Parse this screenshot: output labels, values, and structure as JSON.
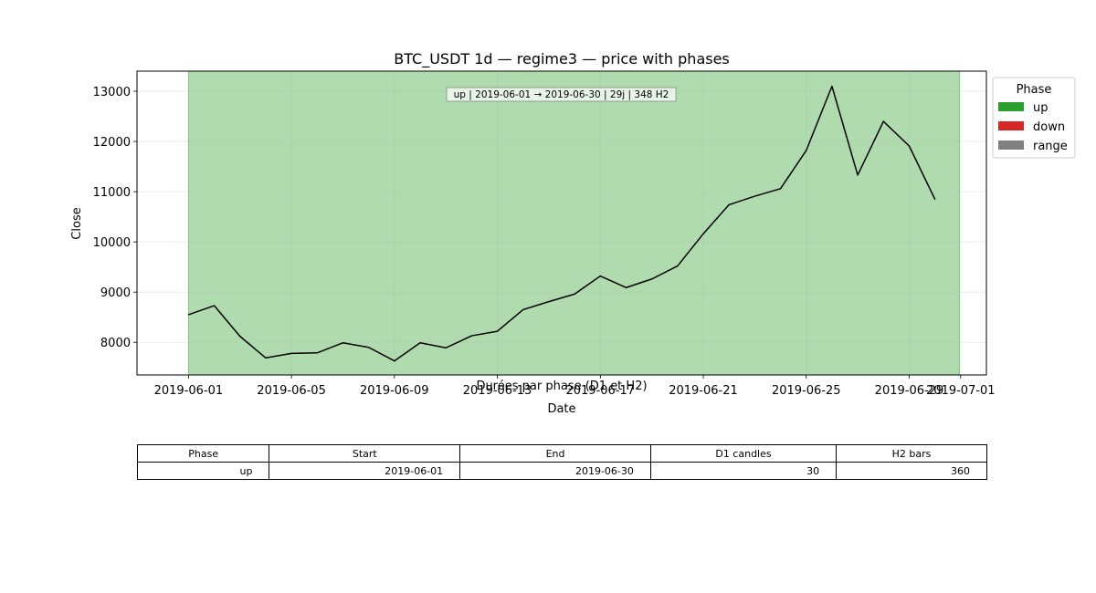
{
  "chart_data": {
    "type": "line",
    "title": "BTC_USDT 1d — regime3 — price with phases",
    "xlabel": "Date",
    "ylabel": "Close",
    "x": [
      "2019-06-01",
      "2019-06-02",
      "2019-06-03",
      "2019-06-04",
      "2019-06-05",
      "2019-06-06",
      "2019-06-07",
      "2019-06-08",
      "2019-06-09",
      "2019-06-10",
      "2019-06-11",
      "2019-06-12",
      "2019-06-13",
      "2019-06-14",
      "2019-06-15",
      "2019-06-16",
      "2019-06-17",
      "2019-06-18",
      "2019-06-19",
      "2019-06-20",
      "2019-06-21",
      "2019-06-22",
      "2019-06-23",
      "2019-06-24",
      "2019-06-25",
      "2019-06-26",
      "2019-06-27",
      "2019-06-28",
      "2019-06-29",
      "2019-06-30"
    ],
    "series": [
      {
        "values": [
          8550,
          8730,
          8120,
          7690,
          7780,
          7790,
          7990,
          7900,
          7630,
          7990,
          7890,
          8130,
          8220,
          8650,
          8810,
          8960,
          9320,
          9090,
          9260,
          9520,
          10160,
          10740,
          10910,
          11060,
          11820,
          13100,
          11330,
          12400,
          11910,
          10850
        ],
        "color": "#000000"
      }
    ],
    "xlim": [
      "2019-05-30",
      "2019-07-02"
    ],
    "ylim": [
      7350,
      13400
    ],
    "x_ticks": [
      "2019-06-01",
      "2019-06-05",
      "2019-06-09",
      "2019-06-13",
      "2019-06-17",
      "2019-06-21",
      "2019-06-25",
      "2019-06-29",
      "2019-07-01"
    ],
    "y_ticks": [
      8000,
      9000,
      10000,
      11000,
      12000,
      13000
    ],
    "grid": true,
    "phases": [
      {
        "phase": "up",
        "start": "2019-06-01",
        "end": "2019-06-30",
        "color": "#2ca02c",
        "alpha": 0.38
      }
    ],
    "annotation": "up | 2019-06-01 → 2019-06-30 | 29j | 348 H2",
    "legend": {
      "title": "Phase",
      "position": "outside-right",
      "items": [
        {
          "label": "up",
          "color": "#2ca02c"
        },
        {
          "label": "down",
          "color": "#d62728"
        },
        {
          "label": "range",
          "color": "#7f7f7f"
        }
      ]
    }
  },
  "table": {
    "title": "Durées par phase (D1 et H2)",
    "headers": [
      "Phase",
      "Start",
      "End",
      "D1 candles",
      "H2 bars"
    ],
    "rows": [
      [
        "up",
        "2019-06-01",
        "2019-06-30",
        "30",
        "360"
      ]
    ]
  }
}
